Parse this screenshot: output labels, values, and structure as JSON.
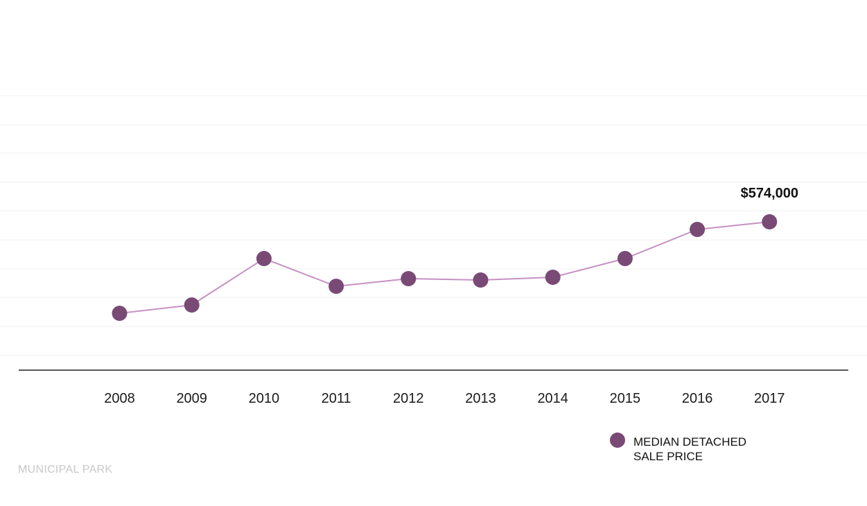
{
  "colors": {
    "point": "#7a4a76",
    "line": "#c591c2",
    "grid": "#f2f2f2",
    "axis": "#222222",
    "footer": "#c8c8c8"
  },
  "chart_data": {
    "type": "line",
    "title": "",
    "xlabel": "",
    "ylabel": "",
    "categories": [
      "2008",
      "2009",
      "2010",
      "2011",
      "2012",
      "2013",
      "2014",
      "2015",
      "2016",
      "2017"
    ],
    "series": [
      {
        "name": "MEDIAN DETACHED SALE PRICE",
        "values": [
          424000,
          430000,
          462000,
          443000,
          448000,
          447000,
          449000,
          462000,
          482000,
          574000
        ]
      }
    ],
    "annotations": [
      {
        "category": "2017",
        "label": "$574,000"
      }
    ],
    "grid": true,
    "legend_position": "bottom-right"
  },
  "legend": {
    "line1": "MEDIAN DETACHED",
    "line2": "SALE PRICE"
  },
  "footer": {
    "label": "MUNICIPAL PARK"
  }
}
